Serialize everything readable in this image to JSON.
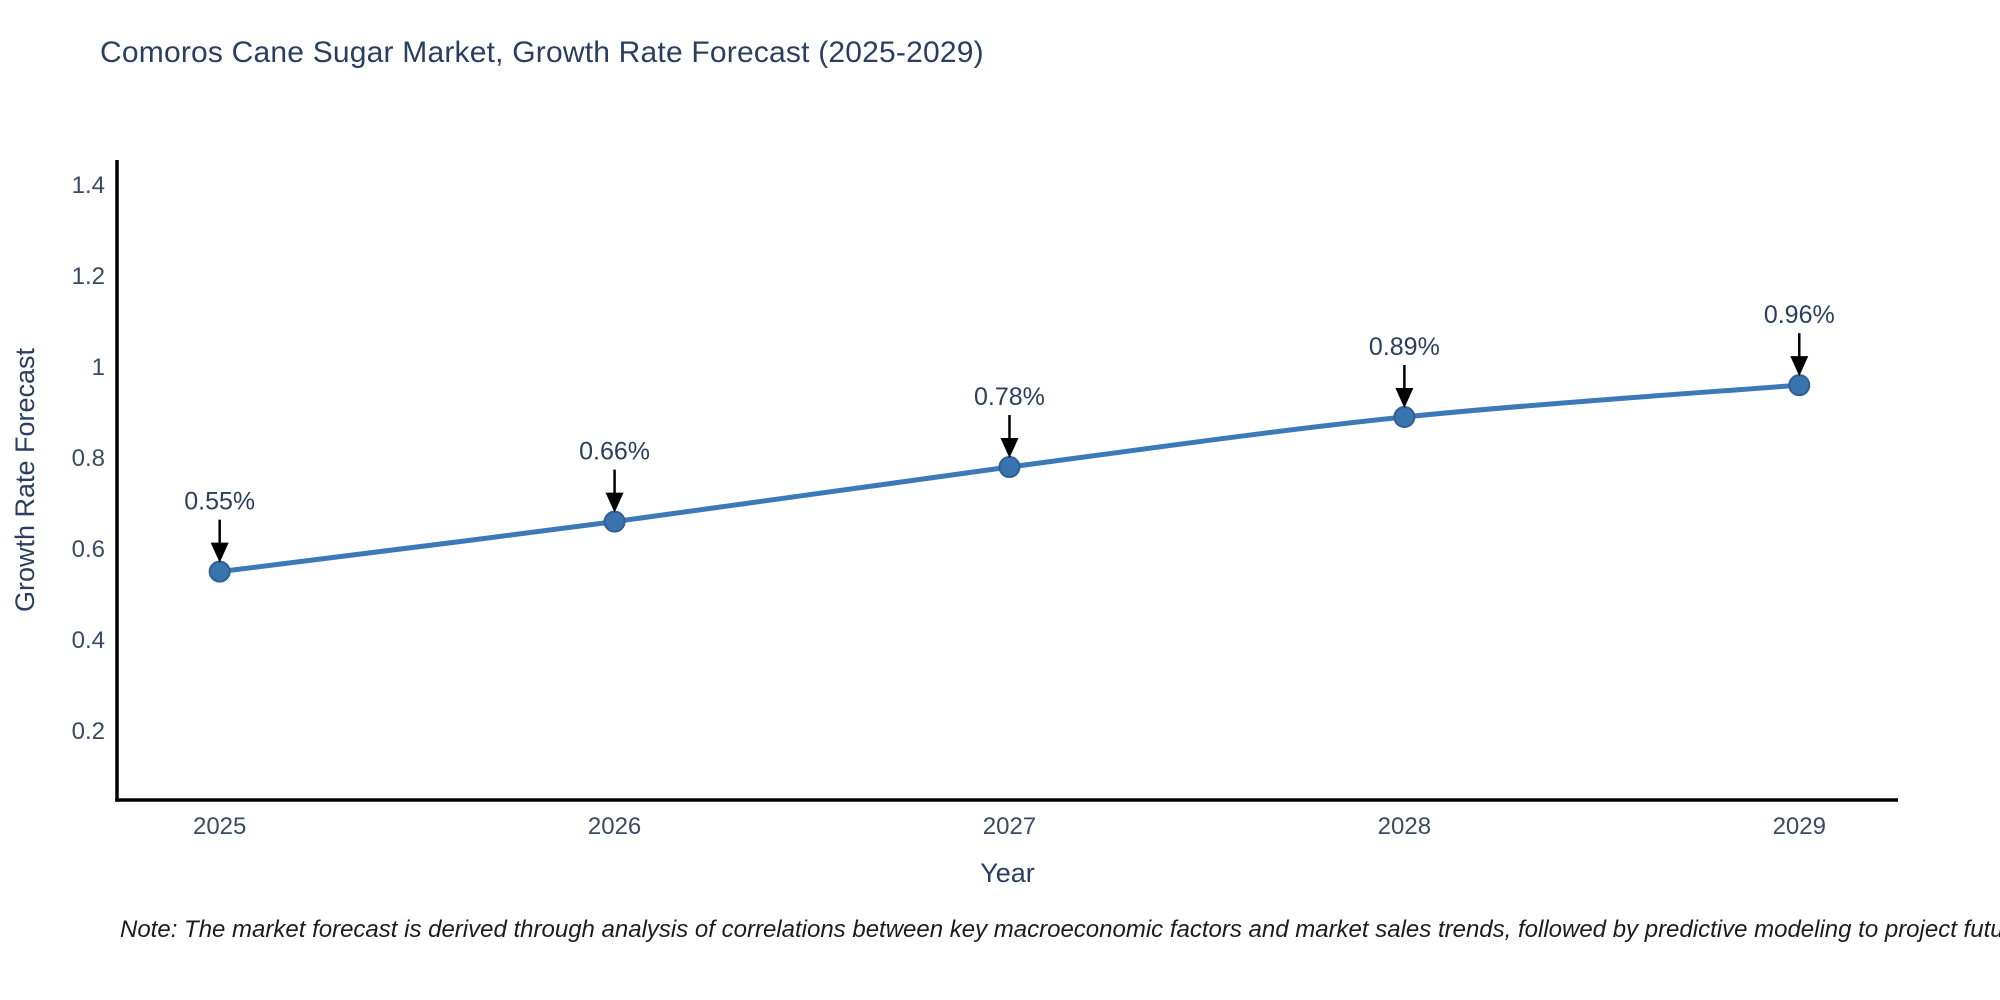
{
  "title": "Comoros Cane Sugar Market, Growth Rate Forecast (2025-2029)",
  "note": "Note: The market forecast is derived through analysis of correlations between key macroeconomic factors and market sales trends, followed by predictive modeling to project future sales",
  "chart_data": {
    "type": "line",
    "x": [
      2025,
      2026,
      2027,
      2028,
      2029
    ],
    "series": [
      {
        "name": "Growth Rate Forecast",
        "values": [
          0.55,
          0.66,
          0.78,
          0.89,
          0.96
        ]
      }
    ],
    "point_labels": [
      "0.55%",
      "0.66%",
      "0.78%",
      "0.89%",
      "0.96%"
    ],
    "x_tick_labels": [
      "2025",
      "2026",
      "2027",
      "2028",
      "2029"
    ],
    "y_tick_values": [
      0.2,
      0.4,
      0.6,
      0.8,
      1.0,
      1.2,
      1.4
    ],
    "y_tick_labels": [
      "0.2",
      "0.4",
      "0.6",
      "0.8",
      "1",
      "1.2",
      "1.4"
    ],
    "xlabel": "Year",
    "ylabel": "Growth Rate Forecast",
    "xlim": [
      2024.74,
      2029.25
    ],
    "ylim": [
      0.048,
      1.455
    ],
    "grid": false,
    "legend": "none",
    "line_shape": "spline"
  },
  "colors": {
    "line": "#3c79b6",
    "marker_fill": "#3a74ae",
    "marker_stroke": "#2e6096",
    "axis": "#000000",
    "tick_text": "#3b4a63",
    "axis_title_text": "#2a3f5f",
    "annotation_text": "#2a3f5f",
    "annotation_arrow": "#000000",
    "title_text": "#2a3f5f"
  }
}
